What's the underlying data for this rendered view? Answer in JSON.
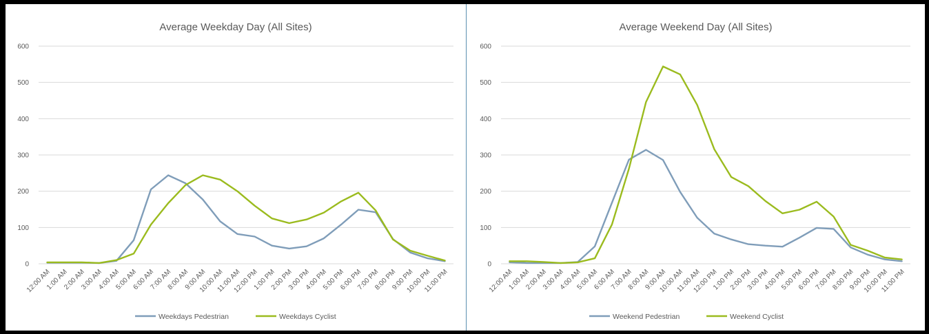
{
  "chart_data": [
    {
      "type": "line",
      "title": "Average Weekday Day (All Sites)",
      "xlabel": "",
      "ylabel": "",
      "ylim": [
        0,
        600
      ],
      "yticks": [
        "0",
        "100",
        "200",
        "300",
        "400",
        "500",
        "600"
      ],
      "grid": true,
      "legend_position": "bottom",
      "categories": [
        "12:00 AM",
        "1:00 AM",
        "2:00 AM",
        "3:00 AM",
        "4:00 AM",
        "5:00 AM",
        "6:00 AM",
        "7:00 AM",
        "8:00 AM",
        "9:00 AM",
        "10:00 AM",
        "11:00 AM",
        "12:00 PM",
        "1:00 PM",
        "2:00 PM",
        "3:00 PM",
        "4:00 PM",
        "5:00 PM",
        "6:00 PM",
        "7:00 PM",
        "8:00 PM",
        "9:00 PM",
        "10:00 PM",
        "11:00 PM"
      ],
      "series": [
        {
          "name": "Weekdays Pedestrian",
          "color": "#7f9db9",
          "values": [
            3,
            3,
            3,
            2,
            8,
            65,
            205,
            244,
            222,
            177,
            117,
            82,
            75,
            50,
            42,
            48,
            70,
            108,
            149,
            142,
            68,
            31,
            15,
            7
          ]
        },
        {
          "name": "Weekdays Cyclist",
          "color": "#9bbb1e",
          "values": [
            4,
            4,
            4,
            2,
            10,
            28,
            108,
            167,
            217,
            244,
            232,
            200,
            160,
            125,
            112,
            122,
            141,
            172,
            196,
            147,
            67,
            36,
            22,
            9
          ]
        }
      ]
    },
    {
      "type": "line",
      "title": "Average Weekend Day (All Sites)",
      "xlabel": "",
      "ylabel": "",
      "ylim": [
        0,
        600
      ],
      "yticks": [
        "0",
        "100",
        "200",
        "300",
        "400",
        "500",
        "600"
      ],
      "grid": true,
      "legend_position": "bottom",
      "categories": [
        "12:00 AM",
        "1:00 AM",
        "2:00 AM",
        "3:00 AM",
        "4:00 AM",
        "5:00 AM",
        "6:00 AM",
        "7:00 AM",
        "8:00 AM",
        "9:00 AM",
        "10:00 AM",
        "11:00 AM",
        "12:00 PM",
        "1:00 PM",
        "2:00 PM",
        "3:00 PM",
        "4:00 PM",
        "5:00 PM",
        "6:00 PM",
        "7:00 PM",
        "8:00 PM",
        "9:00 PM",
        "10:00 PM",
        "11:00 PM"
      ],
      "series": [
        {
          "name": "Weekend Pedestrian",
          "color": "#7f9db9",
          "values": [
            4,
            2,
            2,
            2,
            5,
            48,
            168,
            287,
            314,
            286,
            198,
            127,
            83,
            67,
            54,
            50,
            47,
            72,
            99,
            96,
            45,
            25,
            12,
            7
          ]
        },
        {
          "name": "Weekend Cyclist",
          "color": "#9bbb1e",
          "values": [
            7,
            7,
            5,
            2,
            4,
            15,
            108,
            262,
            446,
            544,
            522,
            438,
            316,
            239,
            214,
            173,
            139,
            149,
            171,
            130,
            52,
            36,
            17,
            12
          ]
        }
      ]
    }
  ]
}
